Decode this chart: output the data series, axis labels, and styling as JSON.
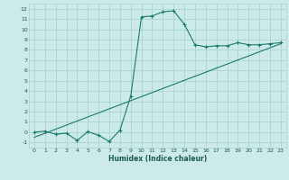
{
  "title": "",
  "xlabel": "Humidex (Indice chaleur)",
  "bg_color": "#cceae7",
  "grid_color": "#aad4d0",
  "line_color": "#1a7a6e",
  "xlim": [
    -0.5,
    23.5
  ],
  "ylim": [
    -1.5,
    12.5
  ],
  "xticks": [
    0,
    1,
    2,
    3,
    4,
    5,
    6,
    7,
    8,
    9,
    10,
    11,
    12,
    13,
    14,
    15,
    16,
    17,
    18,
    19,
    20,
    21,
    22,
    23
  ],
  "yticks": [
    -1,
    0,
    1,
    2,
    3,
    4,
    5,
    6,
    7,
    8,
    9,
    10,
    11,
    12
  ],
  "curve1_x": [
    0,
    1,
    2,
    3,
    4,
    5,
    6,
    7,
    8,
    9,
    10,
    11,
    12,
    13,
    14,
    15,
    16,
    17,
    18,
    19,
    20,
    21,
    22,
    23
  ],
  "curve1_y": [
    0.0,
    0.1,
    -0.2,
    -0.1,
    -0.8,
    0.05,
    -0.3,
    -0.9,
    0.2,
    3.5,
    11.2,
    11.3,
    11.7,
    11.8,
    10.5,
    8.5,
    8.3,
    8.4,
    8.4,
    8.7,
    8.5,
    8.5,
    8.6,
    8.7
  ],
  "curve2_x": [
    0,
    23
  ],
  "curve2_y": [
    -0.5,
    8.6
  ],
  "tick_fontsize": 4.5,
  "label_fontsize": 5.5
}
